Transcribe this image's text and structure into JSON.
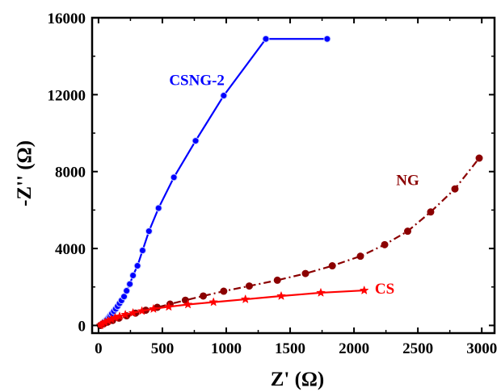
{
  "chart_data": {
    "type": "line",
    "xlabel": "Z' (Ω)",
    "ylabel": "-Z'' (Ω)",
    "xlim": [
      -50,
      3100
    ],
    "ylim": [
      -400,
      16000
    ],
    "xticks": [
      0,
      500,
      1000,
      1500,
      2000,
      2500,
      3000
    ],
    "yticks": [
      0,
      4000,
      8000,
      12000,
      16000
    ],
    "xtick_labels": [
      "0",
      "500",
      "1000",
      "1500",
      "2000",
      "2500",
      "3000"
    ],
    "ytick_labels": [
      "0",
      "4000",
      "8000",
      "12000",
      "16000"
    ],
    "grid": false,
    "legend": "none",
    "series": [
      {
        "name": "CSNG-2",
        "color": "#0000ff",
        "line_style": "solid",
        "marker": "circle",
        "x": [
          15,
          25,
          35,
          45,
          55,
          65,
          75,
          85,
          95,
          105,
          120,
          135,
          150,
          165,
          180,
          200,
          220,
          245,
          270,
          305,
          345,
          395,
          470,
          590,
          760,
          980,
          1310,
          1790
        ],
        "y": [
          0,
          60,
          120,
          180,
          240,
          300,
          380,
          460,
          540,
          620,
          740,
          860,
          1000,
          1150,
          1300,
          1500,
          1800,
          2150,
          2600,
          3100,
          3900,
          4900,
          6100,
          7700,
          9600,
          11950,
          14900,
          14900
        ]
      },
      {
        "name": "NG",
        "color": "#8b0000",
        "line_style": "dashdot",
        "marker": "circle",
        "x": [
          15,
          40,
          70,
          110,
          160,
          220,
          290,
          370,
          460,
          560,
          680,
          820,
          980,
          1180,
          1400,
          1620,
          1830,
          2050,
          2240,
          2420,
          2600,
          2790,
          2980
        ],
        "y": [
          0,
          80,
          170,
          260,
          380,
          500,
          640,
          790,
          940,
          1110,
          1310,
          1530,
          1780,
          2050,
          2350,
          2700,
          3100,
          3600,
          4200,
          4900,
          5900,
          7100,
          8700
        ]
      },
      {
        "name": "CS",
        "color": "#ff0000",
        "line_style": "solid",
        "marker": "star",
        "x": [
          15,
          30,
          50,
          75,
          100,
          130,
          165,
          210,
          270,
          340,
          430,
          550,
          700,
          900,
          1150,
          1430,
          1740,
          2080
        ],
        "y": [
          0,
          80,
          160,
          240,
          320,
          400,
          470,
          560,
          650,
          750,
          860,
          970,
          1090,
          1210,
          1360,
          1530,
          1700,
          1820
        ]
      }
    ],
    "annotations": [
      {
        "text": "CSNG-2",
        "x": 770,
        "y": 12500,
        "color": "#0000ff"
      },
      {
        "text": "NG",
        "x": 2420,
        "y": 7300,
        "color": "#8b0000"
      },
      {
        "text": "CS",
        "x": 2240,
        "y": 1650,
        "color": "#ff0000"
      }
    ]
  }
}
